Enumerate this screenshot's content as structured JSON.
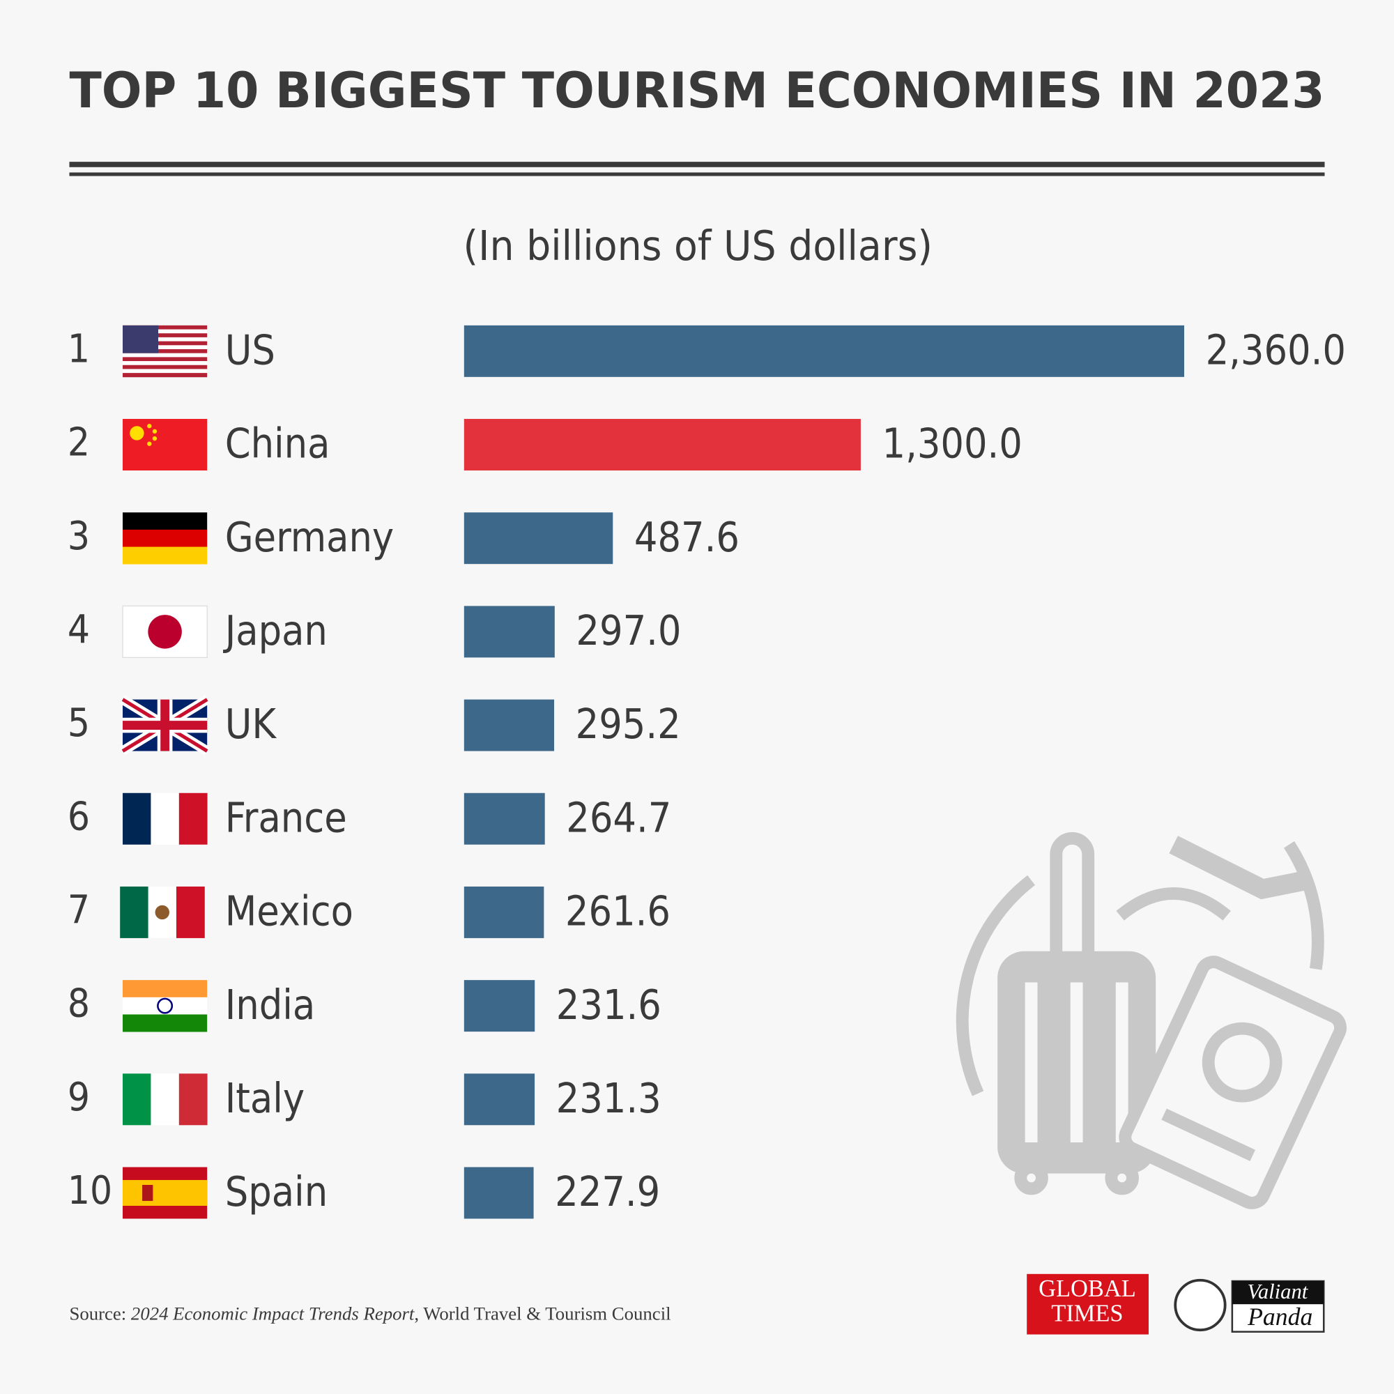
{
  "chart_data": {
    "type": "bar",
    "title": "TOP 10 BIGGEST TOURISM ECONOMIES IN 2023",
    "subtitle": "(In billions of US dollars)",
    "ranks": [
      1,
      2,
      3,
      4,
      5,
      6,
      7,
      8,
      9,
      10
    ],
    "categories": [
      "US",
      "China",
      "Germany",
      "Japan",
      "UK",
      "France",
      "Mexico",
      "India",
      "Italy",
      "Spain"
    ],
    "values": [
      2360.0,
      1300.0,
      487.6,
      297.0,
      295.2,
      264.7,
      261.6,
      231.6,
      231.3,
      227.9
    ],
    "value_labels": [
      "2,360.0",
      "1,300.0",
      "487.6",
      "297.0",
      "295.2",
      "264.7",
      "261.6",
      "231.6",
      "231.3",
      "227.9"
    ],
    "colors": [
      "#3e6889",
      "#e3323b",
      "#3e6889",
      "#3e6889",
      "#3e6889",
      "#3e6889",
      "#3e6889",
      "#3e6889",
      "#3e6889",
      "#3e6889"
    ],
    "xlim": [
      0,
      2360
    ],
    "source": {
      "prefix": "Source: ",
      "report": "2024 Economic Impact Trends Report",
      "rest": ", World Travel & Tourism Council"
    },
    "logos": {
      "global_times_1": "GLOBAL",
      "global_times_2": "TIMES",
      "panda_1": "Valiant",
      "panda_2": "Panda"
    }
  }
}
